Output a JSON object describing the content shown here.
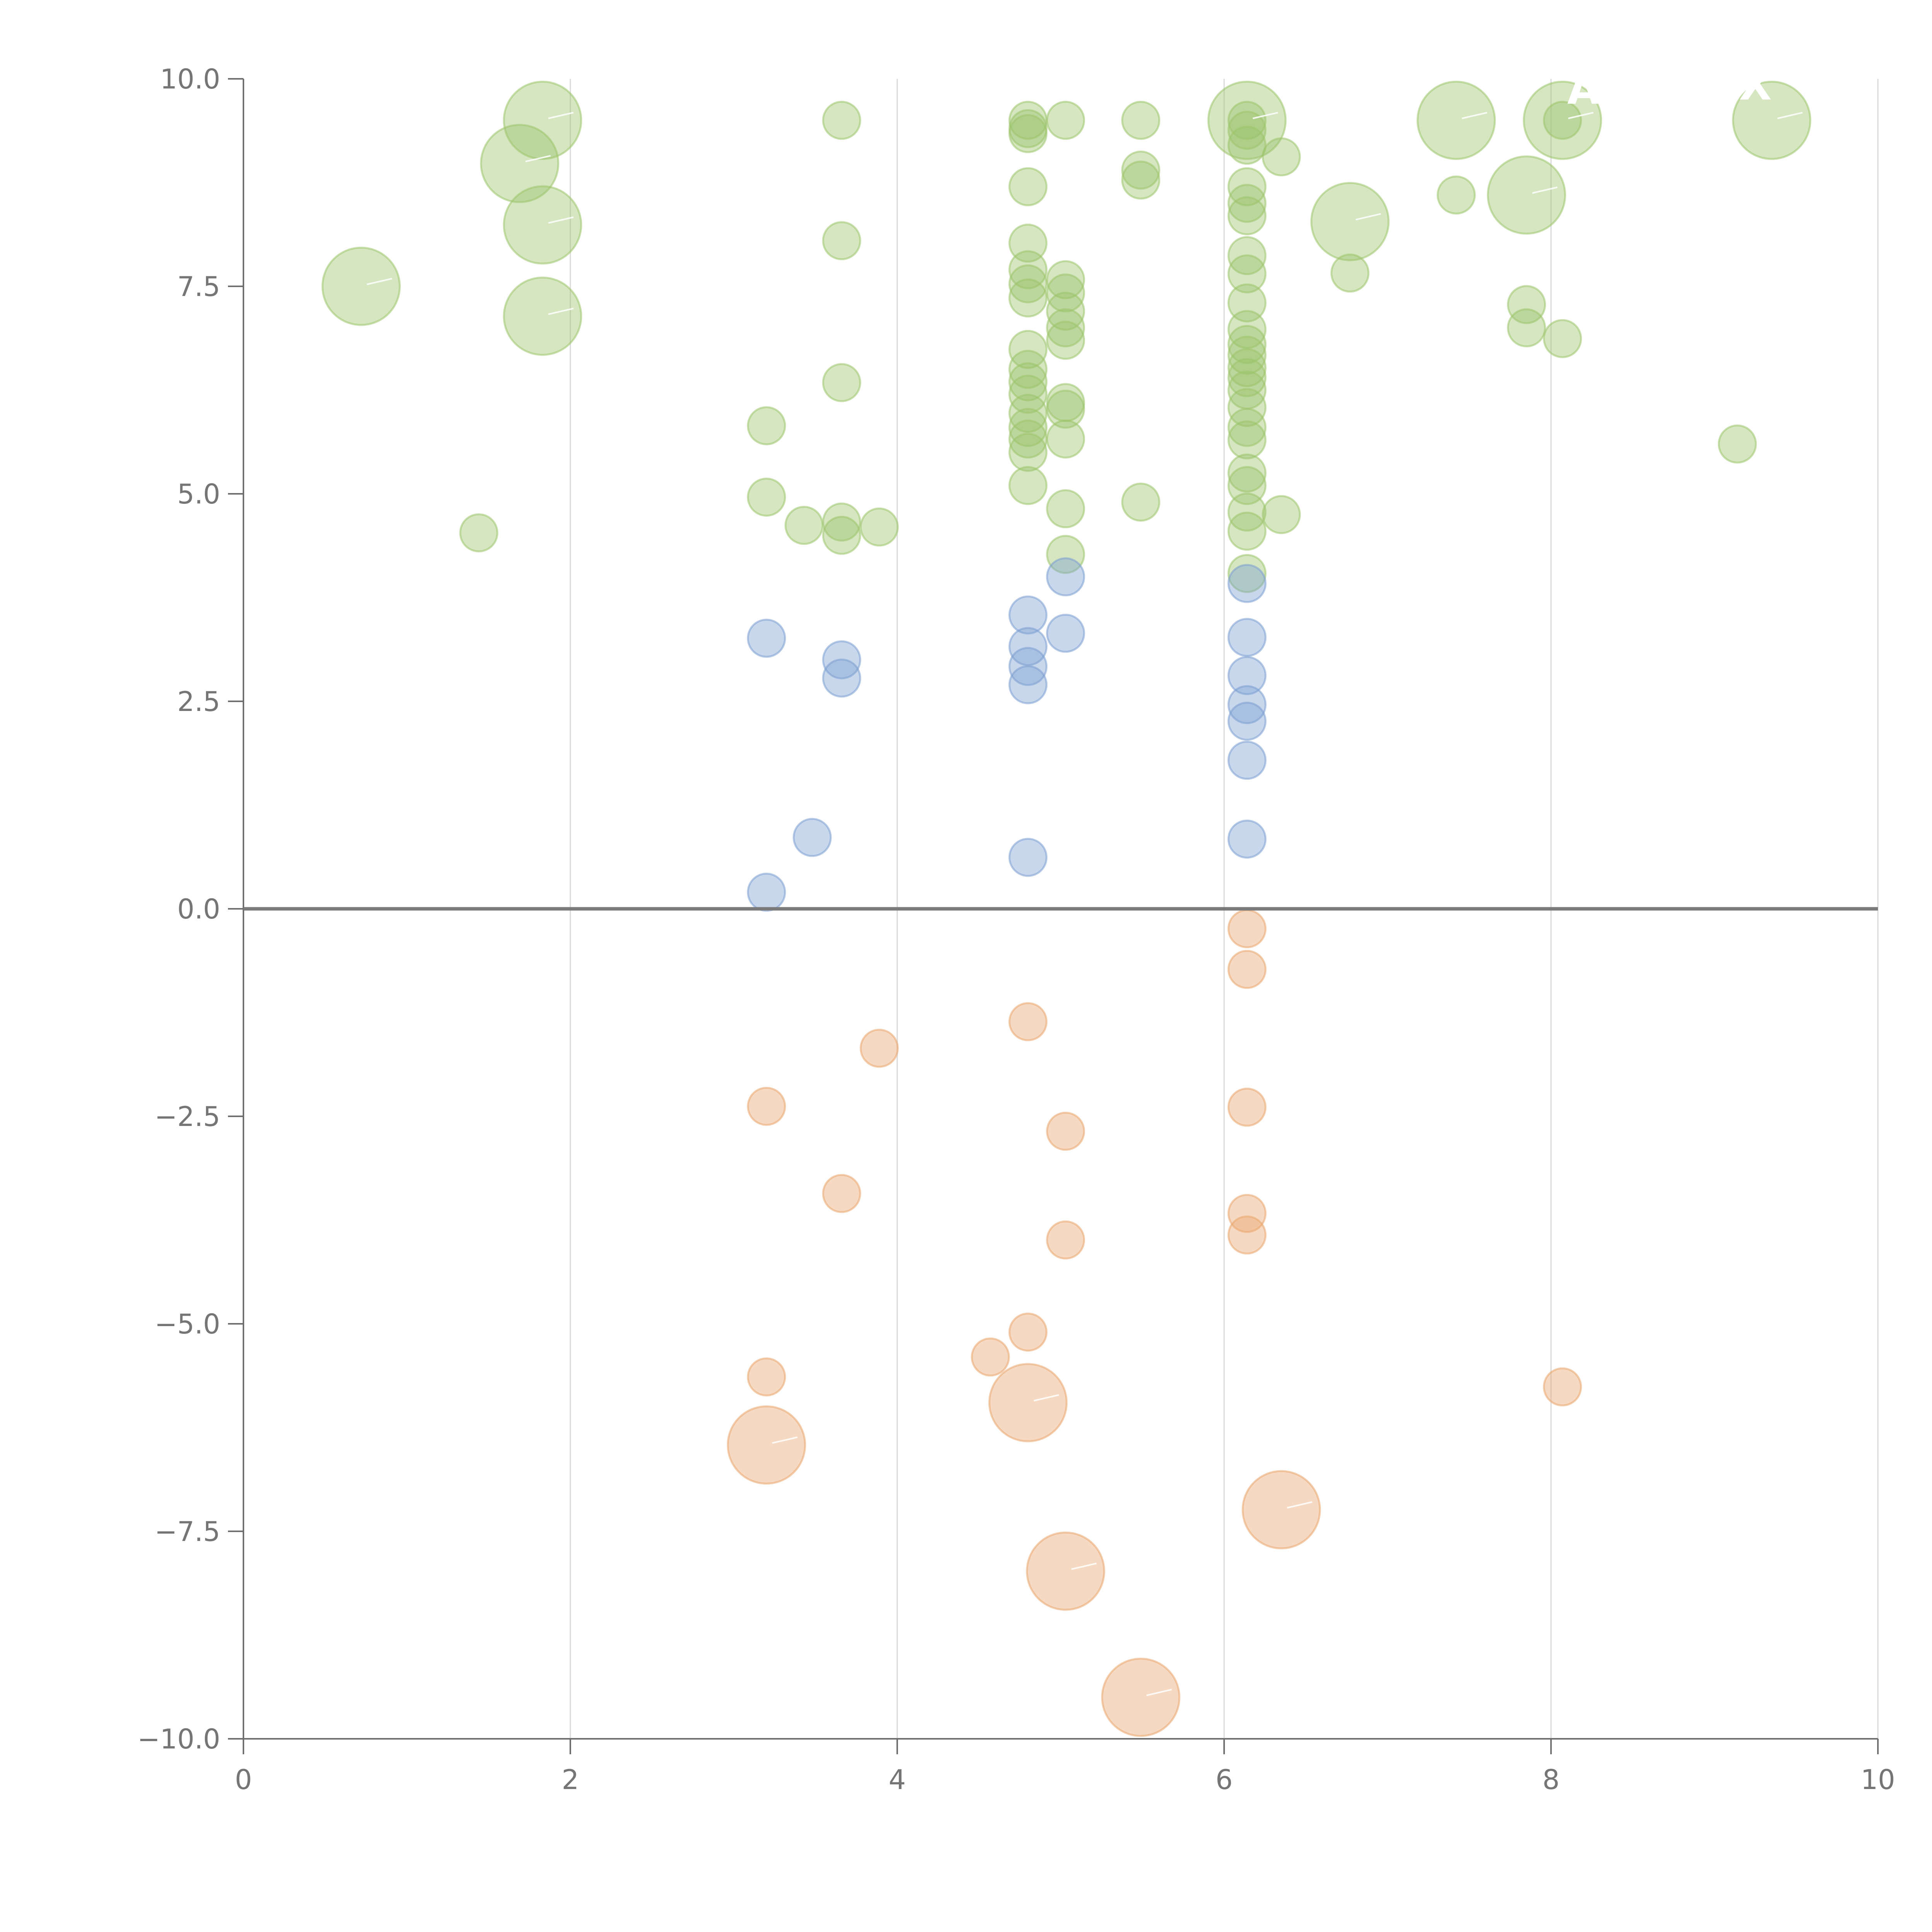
{
  "chart_data": {
    "type": "scatter",
    "title": "",
    "xlabel": "",
    "ylabel": "",
    "xlim": [
      0,
      10
    ],
    "ylim": [
      -10,
      10
    ],
    "x_ticks": [
      "0",
      "2",
      "4",
      "6",
      "8",
      "10"
    ],
    "y_ticks": [
      "10.0",
      "7.5",
      "5.0",
      "2.5",
      "0.0",
      "−2.5",
      "−5.0",
      "−7.5",
      "−10.0"
    ],
    "x_tick_values": [
      0,
      2,
      4,
      6,
      8,
      10
    ],
    "y_tick_values": [
      10,
      7.5,
      5,
      2.5,
      0,
      -2.5,
      -5,
      -7.5,
      -10
    ],
    "grid": "vertical",
    "zero_line": true,
    "colors": {
      "green": "#9cc46b",
      "blue": "#7b9fd2",
      "orange": "#e9a56d"
    },
    "series": [
      {
        "name": "green",
        "color": "#9cc46b",
        "points": [
          [
            0.72,
            7.5,
            2
          ],
          [
            1.44,
            4.53,
            1
          ],
          [
            1.69,
            8.98,
            2
          ],
          [
            1.83,
            9.5,
            2
          ],
          [
            1.83,
            8.24,
            2
          ],
          [
            1.83,
            7.14,
            2
          ],
          [
            3.2,
            5.82,
            1
          ],
          [
            3.2,
            4.96,
            1
          ],
          [
            3.43,
            4.62,
            1
          ],
          [
            3.66,
            9.5,
            1
          ],
          [
            3.66,
            8.05,
            1
          ],
          [
            3.66,
            6.34,
            1
          ],
          [
            3.66,
            4.66,
            1
          ],
          [
            3.66,
            4.5,
            1
          ],
          [
            3.89,
            4.6,
            1
          ],
          [
            4.8,
            9.5,
            1
          ],
          [
            4.8,
            9.4,
            1
          ],
          [
            4.8,
            9.34,
            1
          ],
          [
            4.8,
            8.7,
            1
          ],
          [
            4.8,
            8.02,
            1
          ],
          [
            4.8,
            7.7,
            1
          ],
          [
            4.8,
            7.53,
            1
          ],
          [
            4.8,
            7.36,
            1
          ],
          [
            4.8,
            6.74,
            1
          ],
          [
            4.8,
            6.5,
            1
          ],
          [
            4.8,
            6.35,
            1
          ],
          [
            4.8,
            6.2,
            1
          ],
          [
            4.8,
            5.97,
            1
          ],
          [
            4.8,
            5.8,
            1
          ],
          [
            4.8,
            5.66,
            1
          ],
          [
            4.8,
            5.5,
            1
          ],
          [
            4.8,
            5.1,
            1
          ],
          [
            5.03,
            9.5,
            1
          ],
          [
            5.03,
            7.58,
            1
          ],
          [
            5.03,
            7.42,
            1
          ],
          [
            5.03,
            7.2,
            1
          ],
          [
            5.03,
            7.0,
            1
          ],
          [
            5.03,
            6.85,
            1
          ],
          [
            5.03,
            6.1,
            1
          ],
          [
            5.03,
            6.02,
            1
          ],
          [
            5.03,
            5.66,
            1
          ],
          [
            5.03,
            4.82,
            1
          ],
          [
            5.03,
            4.27,
            1
          ],
          [
            5.49,
            9.5,
            1
          ],
          [
            5.49,
            8.9,
            1
          ],
          [
            5.49,
            8.78,
            1
          ],
          [
            5.49,
            4.9,
            1
          ],
          [
            6.14,
            9.5,
            2
          ],
          [
            6.14,
            9.5,
            1
          ],
          [
            6.14,
            9.38,
            1
          ],
          [
            6.14,
            9.2,
            1
          ],
          [
            6.14,
            8.7,
            1
          ],
          [
            6.14,
            8.5,
            1
          ],
          [
            6.14,
            8.35,
            1
          ],
          [
            6.14,
            7.87,
            1
          ],
          [
            6.14,
            7.65,
            1
          ],
          [
            6.14,
            7.3,
            1
          ],
          [
            6.14,
            6.98,
            1
          ],
          [
            6.14,
            6.8,
            1
          ],
          [
            6.14,
            6.67,
            1
          ],
          [
            6.14,
            6.52,
            1
          ],
          [
            6.14,
            6.4,
            1
          ],
          [
            6.14,
            6.25,
            1
          ],
          [
            6.14,
            6.04,
            1
          ],
          [
            6.14,
            5.8,
            1
          ],
          [
            6.14,
            5.65,
            1
          ],
          [
            6.14,
            5.25,
            1
          ],
          [
            6.14,
            5.1,
            1
          ],
          [
            6.14,
            4.78,
            1
          ],
          [
            6.14,
            4.55,
            1
          ],
          [
            6.14,
            4.04,
            1
          ],
          [
            6.35,
            9.06,
            1
          ],
          [
            6.35,
            4.75,
            1
          ],
          [
            6.77,
            8.28,
            2
          ],
          [
            6.77,
            7.66,
            1
          ],
          [
            7.42,
            9.5,
            2
          ],
          [
            7.42,
            8.6,
            1
          ],
          [
            7.85,
            8.6,
            2
          ],
          [
            7.85,
            7.28,
            1
          ],
          [
            7.85,
            7.0,
            1
          ],
          [
            8.07,
            9.5,
            2
          ],
          [
            8.07,
            9.5,
            1
          ],
          [
            8.07,
            6.87,
            1
          ],
          [
            9.14,
            5.6,
            1
          ],
          [
            9.35,
            9.5,
            2
          ]
        ]
      },
      {
        "name": "blue",
        "color": "#7b9fd2",
        "points": [
          [
            3.2,
            3.26,
            1
          ],
          [
            3.2,
            0.2,
            1
          ],
          [
            3.48,
            0.86,
            1
          ],
          [
            3.66,
            3.0,
            1
          ],
          [
            3.66,
            2.78,
            1
          ],
          [
            4.8,
            3.54,
            1
          ],
          [
            4.8,
            3.16,
            1
          ],
          [
            4.8,
            2.92,
            1
          ],
          [
            4.8,
            2.7,
            1
          ],
          [
            4.8,
            0.62,
            1
          ],
          [
            5.03,
            4.0,
            1
          ],
          [
            5.03,
            3.32,
            1
          ],
          [
            6.14,
            3.92,
            1
          ],
          [
            6.14,
            3.27,
            1
          ],
          [
            6.14,
            2.81,
            1
          ],
          [
            6.14,
            2.46,
            1
          ],
          [
            6.14,
            2.26,
            1
          ],
          [
            6.14,
            1.79,
            1
          ],
          [
            6.14,
            0.84,
            1
          ]
        ]
      },
      {
        "name": "orange",
        "color": "#e9a56d",
        "points": [
          [
            3.2,
            -2.38,
            1
          ],
          [
            3.2,
            -5.64,
            1
          ],
          [
            3.2,
            -6.46,
            2
          ],
          [
            3.66,
            -3.43,
            1
          ],
          [
            3.89,
            -1.68,
            1
          ],
          [
            4.57,
            -5.4,
            1
          ],
          [
            4.8,
            -1.36,
            1
          ],
          [
            4.8,
            -5.1,
            1
          ],
          [
            4.8,
            -5.95,
            2
          ],
          [
            5.03,
            -2.68,
            1
          ],
          [
            5.03,
            -3.99,
            1
          ],
          [
            5.03,
            -7.98,
            2
          ],
          [
            5.49,
            -9.5,
            2
          ],
          [
            6.14,
            -0.24,
            1
          ],
          [
            6.14,
            -0.73,
            1
          ],
          [
            6.14,
            -2.39,
            1
          ],
          [
            6.14,
            -3.67,
            1
          ],
          [
            6.14,
            -3.93,
            1
          ],
          [
            6.35,
            -7.24,
            2
          ],
          [
            8.07,
            -5.76,
            1
          ]
        ]
      }
    ],
    "point_labels": [
      {
        "text": "A",
        "x": 8.2,
        "y": 9.7
      },
      {
        "text": "X",
        "x": 9.25,
        "y": 9.75
      }
    ]
  }
}
